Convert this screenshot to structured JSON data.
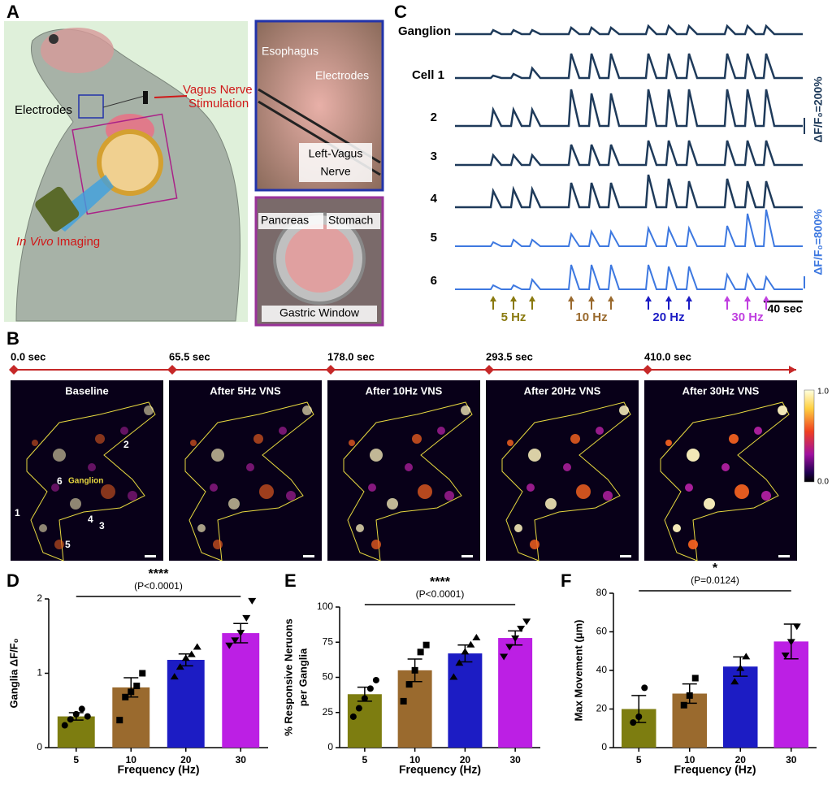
{
  "panel_a": {
    "letter": "A",
    "stimulation_label": [
      "Vagus Nerve",
      "Stimulation"
    ],
    "electrodes_label": "Electrodes",
    "imaging_label": {
      "italic": "In Vivo",
      "rest": " Imaging"
    },
    "inset_top": {
      "esophagus": "Esophagus",
      "electrodes": "Electrodes",
      "nerve": [
        "Left-Vagus",
        "Nerve"
      ]
    },
    "inset_bottom": {
      "pancreas": "Pancreas",
      "stomach": "Stomach",
      "window": "Gastric Window"
    }
  },
  "panel_c": {
    "letter": "C",
    "rows": [
      "Ganglion",
      "Cell 1",
      "2",
      "3",
      "4",
      "5",
      "6"
    ],
    "scale_bars": [
      "ΔF/F₀=200%",
      "ΔF/F₀=800%"
    ],
    "stimuli": [
      "5 Hz",
      "10 Hz",
      "20 Hz",
      "30 Hz"
    ],
    "time_bar": "40 sec"
  },
  "panel_b": {
    "letter": "B",
    "frames": [
      {
        "time": "0.0 sec",
        "title": "Baseline"
      },
      {
        "time": "65.5 sec",
        "title": "After 5Hz VNS"
      },
      {
        "time": "178.0 sec",
        "title": "After 10Hz VNS"
      },
      {
        "time": "293.5 sec",
        "title": "After 20Hz VNS"
      },
      {
        "time": "410.0 sec",
        "title": "After 30Hz VNS"
      }
    ],
    "cell_labels": [
      "1",
      "2",
      "3",
      "4",
      "5",
      "6"
    ],
    "ganglion_label": "Ganglion",
    "colorbar": [
      "1.0",
      "0.0"
    ]
  },
  "chart_data": [
    {
      "type": "bar",
      "panel": "D",
      "ylabel": "Ganglia ΔF/F₀",
      "xlabel": "Frequency (Hz)",
      "categories": [
        "5",
        "10",
        "20",
        "30"
      ],
      "values": [
        0.42,
        0.81,
        1.18,
        1.54
      ],
      "errors": [
        0.05,
        0.13,
        0.08,
        0.13
      ],
      "points": [
        [
          0.3,
          0.38,
          0.45,
          0.52,
          0.42
        ],
        [
          0.37,
          0.68,
          0.75,
          0.83,
          1.0
        ],
        [
          0.95,
          1.08,
          1.2,
          1.25,
          1.35
        ],
        [
          1.38,
          1.45,
          1.55,
          1.75,
          1.98
        ]
      ],
      "colors": [
        "#7d7d10",
        "#9a6a2e",
        "#1c1cc4",
        "#bc1fe4"
      ],
      "ylim": [
        0,
        2
      ],
      "yticks": [
        0,
        1,
        2
      ],
      "significance": {
        "stars": "****",
        "p": "(P<0.0001)"
      }
    },
    {
      "type": "bar",
      "panel": "E",
      "ylabel": [
        "% Responsive Neruons",
        "per Ganglia"
      ],
      "xlabel": "Frequency (Hz)",
      "categories": [
        "5",
        "10",
        "20",
        "30"
      ],
      "values": [
        38,
        55,
        67,
        78
      ],
      "errors": [
        5,
        8,
        6,
        5
      ],
      "points": [
        [
          22,
          28,
          35,
          42,
          48
        ],
        [
          33,
          45,
          55,
          68,
          73
        ],
        [
          50,
          60,
          68,
          73,
          78
        ],
        [
          65,
          72,
          78,
          85,
          90
        ]
      ],
      "colors": [
        "#7d7d10",
        "#9a6a2e",
        "#1c1cc4",
        "#bc1fe4"
      ],
      "ylim": [
        0,
        100
      ],
      "yticks": [
        0,
        25,
        50,
        75,
        100
      ],
      "significance": {
        "stars": "****",
        "p": "(P<0.0001)"
      }
    },
    {
      "type": "bar",
      "panel": "F",
      "ylabel": "Max Movement (μm)",
      "xlabel": "Frequency (Hz)",
      "categories": [
        "5",
        "10",
        "20",
        "30"
      ],
      "values": [
        20,
        28,
        42,
        55
      ],
      "errors": [
        7,
        5,
        5,
        9
      ],
      "points": [
        [
          13,
          16,
          31
        ],
        [
          22,
          27,
          36
        ],
        [
          34,
          41,
          47
        ],
        [
          48,
          55,
          63
        ]
      ],
      "colors": [
        "#7d7d10",
        "#9a6a2e",
        "#1c1cc4",
        "#bc1fe4"
      ],
      "ylim": [
        0,
        80
      ],
      "yticks": [
        0,
        20,
        40,
        60,
        80
      ],
      "significance": {
        "stars": "*",
        "p": "(P=0.0124)"
      }
    }
  ]
}
